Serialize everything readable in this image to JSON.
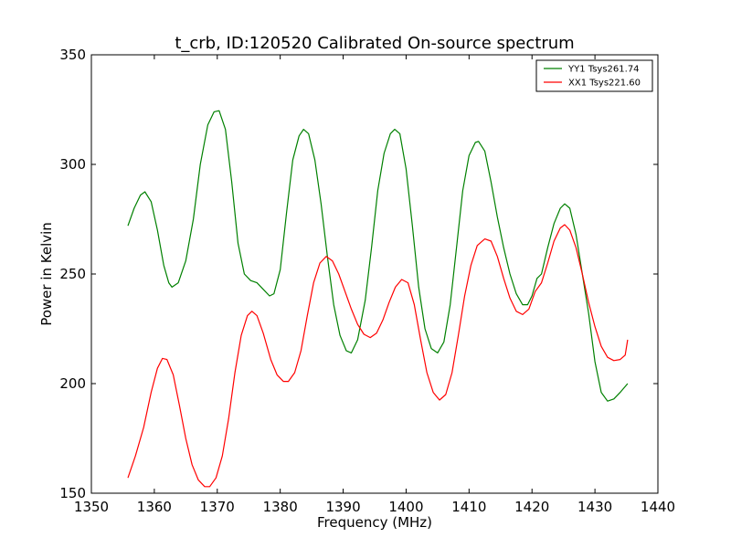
{
  "chart_data": {
    "type": "line",
    "title": "t_crb, ID:120520 Calibrated On-source spectrum",
    "xlabel": "Frequency (MHz)",
    "ylabel": "Power in Kelvin",
    "xlim": [
      1350,
      1440
    ],
    "ylim": [
      150,
      350
    ],
    "xticks": [
      "1350",
      "1360",
      "1370",
      "1380",
      "1390",
      "1400",
      "1410",
      "1420",
      "1430",
      "1440"
    ],
    "yticks": [
      "150",
      "200",
      "250",
      "300",
      "350"
    ],
    "legend_position": "top-right",
    "grid": false,
    "series": [
      {
        "name": "YY1 Tsys261.74",
        "color": "#008000",
        "points": [
          [
            1355.8,
            272
          ],
          [
            1356.8,
            280
          ],
          [
            1357.8,
            286
          ],
          [
            1358.5,
            287.5
          ],
          [
            1359.5,
            283
          ],
          [
            1360.5,
            270
          ],
          [
            1361.5,
            254
          ],
          [
            1362.3,
            246
          ],
          [
            1362.8,
            244
          ],
          [
            1363.8,
            246
          ],
          [
            1365.0,
            256
          ],
          [
            1366.2,
            275
          ],
          [
            1367.3,
            300
          ],
          [
            1368.5,
            318
          ],
          [
            1369.5,
            324
          ],
          [
            1370.3,
            324.5
          ],
          [
            1371.3,
            316
          ],
          [
            1372.3,
            292
          ],
          [
            1373.3,
            264
          ],
          [
            1374.3,
            250
          ],
          [
            1375.3,
            247
          ],
          [
            1376.3,
            246
          ],
          [
            1377.3,
            243
          ],
          [
            1378.3,
            240
          ],
          [
            1379.0,
            241
          ],
          [
            1380.0,
            252
          ],
          [
            1381.0,
            278
          ],
          [
            1382.0,
            302
          ],
          [
            1383.0,
            313
          ],
          [
            1383.7,
            316
          ],
          [
            1384.5,
            314
          ],
          [
            1385.5,
            302
          ],
          [
            1386.5,
            282
          ],
          [
            1387.5,
            258
          ],
          [
            1388.5,
            236
          ],
          [
            1389.5,
            222
          ],
          [
            1390.5,
            215
          ],
          [
            1391.3,
            214
          ],
          [
            1392.3,
            220
          ],
          [
            1393.5,
            238
          ],
          [
            1394.5,
            262
          ],
          [
            1395.5,
            288
          ],
          [
            1396.5,
            305
          ],
          [
            1397.5,
            314
          ],
          [
            1398.2,
            316
          ],
          [
            1399.0,
            314
          ],
          [
            1400.0,
            298
          ],
          [
            1401.0,
            272
          ],
          [
            1402.0,
            244
          ],
          [
            1403.0,
            225
          ],
          [
            1404.0,
            216
          ],
          [
            1405.0,
            214
          ],
          [
            1406.0,
            219
          ],
          [
            1407.0,
            236
          ],
          [
            1408.0,
            262
          ],
          [
            1409.0,
            288
          ],
          [
            1410.0,
            304
          ],
          [
            1411.0,
            310
          ],
          [
            1411.5,
            310.5
          ],
          [
            1412.5,
            306
          ],
          [
            1413.5,
            292
          ],
          [
            1414.5,
            276
          ],
          [
            1415.5,
            262
          ],
          [
            1416.5,
            250
          ],
          [
            1417.5,
            241
          ],
          [
            1418.5,
            236
          ],
          [
            1419.3,
            236
          ],
          [
            1420.0,
            240
          ],
          [
            1420.8,
            248
          ],
          [
            1421.5,
            250
          ],
          [
            1422.5,
            262
          ],
          [
            1423.5,
            273
          ],
          [
            1424.5,
            280
          ],
          [
            1425.2,
            282
          ],
          [
            1426.0,
            280
          ],
          [
            1427.0,
            268
          ],
          [
            1428.0,
            250
          ],
          [
            1429.0,
            232
          ],
          [
            1430.0,
            210
          ],
          [
            1431.0,
            196
          ],
          [
            1432.0,
            192
          ],
          [
            1433.0,
            193
          ],
          [
            1434.0,
            196
          ],
          [
            1435.2,
            200
          ]
        ]
      },
      {
        "name": "XX1 Tsys221.60",
        "color": "#ff0000",
        "points": [
          [
            1355.8,
            157
          ],
          [
            1357.0,
            167
          ],
          [
            1358.3,
            180
          ],
          [
            1359.5,
            196
          ],
          [
            1360.5,
            207
          ],
          [
            1361.3,
            211.5
          ],
          [
            1362.0,
            211
          ],
          [
            1363.0,
            204
          ],
          [
            1364.0,
            190
          ],
          [
            1365.0,
            175
          ],
          [
            1366.0,
            163
          ],
          [
            1367.0,
            156
          ],
          [
            1368.0,
            153
          ],
          [
            1368.8,
            153
          ],
          [
            1369.8,
            157
          ],
          [
            1370.8,
            167
          ],
          [
            1371.8,
            184
          ],
          [
            1372.8,
            205
          ],
          [
            1373.8,
            222
          ],
          [
            1374.8,
            231
          ],
          [
            1375.5,
            233
          ],
          [
            1376.3,
            231
          ],
          [
            1377.3,
            223
          ],
          [
            1378.5,
            211
          ],
          [
            1379.5,
            204
          ],
          [
            1380.5,
            201
          ],
          [
            1381.3,
            201
          ],
          [
            1382.3,
            205
          ],
          [
            1383.3,
            215
          ],
          [
            1384.3,
            231
          ],
          [
            1385.3,
            246
          ],
          [
            1386.3,
            255
          ],
          [
            1387.3,
            258
          ],
          [
            1388.3,
            256
          ],
          [
            1389.3,
            250
          ],
          [
            1390.3,
            242
          ],
          [
            1391.3,
            234
          ],
          [
            1392.3,
            227
          ],
          [
            1393.3,
            222.5
          ],
          [
            1394.3,
            221
          ],
          [
            1395.3,
            223
          ],
          [
            1396.3,
            229
          ],
          [
            1397.3,
            237
          ],
          [
            1398.3,
            244
          ],
          [
            1399.3,
            247.5
          ],
          [
            1400.3,
            246
          ],
          [
            1401.3,
            236
          ],
          [
            1402.3,
            220
          ],
          [
            1403.3,
            205
          ],
          [
            1404.3,
            196
          ],
          [
            1405.3,
            192.5
          ],
          [
            1406.3,
            195
          ],
          [
            1407.3,
            205
          ],
          [
            1408.3,
            222
          ],
          [
            1409.3,
            240
          ],
          [
            1410.3,
            254
          ],
          [
            1411.3,
            263
          ],
          [
            1412.5,
            266
          ],
          [
            1413.5,
            265
          ],
          [
            1414.5,
            258
          ],
          [
            1415.5,
            248
          ],
          [
            1416.5,
            239
          ],
          [
            1417.5,
            233
          ],
          [
            1418.5,
            231.5
          ],
          [
            1419.5,
            234
          ],
          [
            1420.5,
            242
          ],
          [
            1421.5,
            246
          ],
          [
            1422.5,
            255
          ],
          [
            1423.5,
            265
          ],
          [
            1424.5,
            271
          ],
          [
            1425.2,
            272.5
          ],
          [
            1426.0,
            270
          ],
          [
            1427.0,
            262
          ],
          [
            1428.0,
            250
          ],
          [
            1429.0,
            237
          ],
          [
            1430.0,
            226
          ],
          [
            1431.0,
            217
          ],
          [
            1432.0,
            212
          ],
          [
            1433.0,
            210.5
          ],
          [
            1434.0,
            211
          ],
          [
            1434.8,
            213
          ],
          [
            1435.2,
            220
          ]
        ]
      }
    ]
  }
}
